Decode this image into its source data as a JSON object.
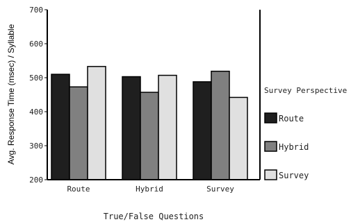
{
  "chart_data": {
    "type": "bar",
    "title": "",
    "xlabel": "True/False Questions",
    "ylabel": "Avg. Response Time (msec) / Syllable",
    "ylim": [
      200,
      700
    ],
    "yticks": [
      200,
      300,
      400,
      500,
      600,
      700
    ],
    "categories": [
      "Route",
      "Hybrid",
      "Survey"
    ],
    "legend_title": "Survey Perspective",
    "legend_position": "right",
    "series": [
      {
        "name": "Route",
        "color": "#1f1f1f",
        "values": [
          510,
          503,
          488
        ]
      },
      {
        "name": "Hybrid",
        "color": "#808080",
        "values": [
          473,
          457,
          519
        ]
      },
      {
        "name": "Survey",
        "color": "#e0e0e0",
        "values": [
          533,
          507,
          442
        ]
      }
    ]
  }
}
